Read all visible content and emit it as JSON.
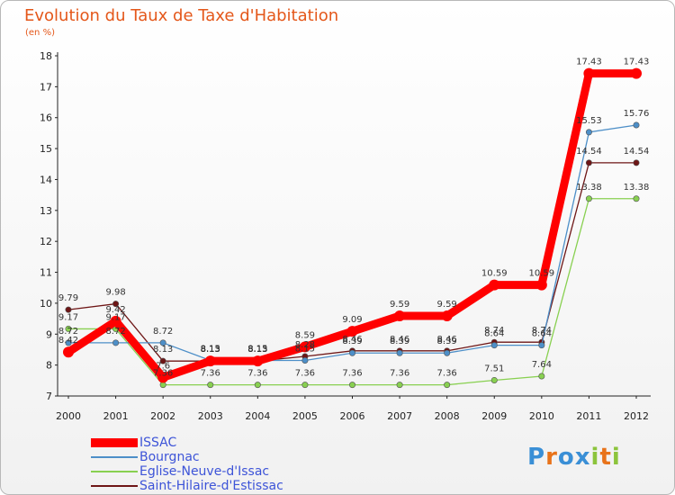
{
  "header": {
    "title": "Evolution du Taux de Taxe d'Habitation",
    "subtitle": "(en %)"
  },
  "logo": {
    "text": "Proxiti",
    "letter_colors": [
      "#3a8fd6",
      "#e8731a",
      "#3a8fd6",
      "#3a8fd6",
      "#8cc43c",
      "#e8731a",
      "#8cc43c"
    ]
  },
  "chart_data": {
    "type": "line",
    "x": [
      "2000",
      "2001",
      "2002",
      "2003",
      "2004",
      "2005",
      "2006",
      "2007",
      "2008",
      "2009",
      "2010",
      "2011",
      "2012"
    ],
    "ylim": [
      7,
      18
    ],
    "yticks": [
      "7",
      "8",
      "9",
      "10",
      "11",
      "12",
      "13",
      "14",
      "15",
      "16",
      "17",
      "18"
    ],
    "grid": false,
    "legend_position": "bottom-left",
    "series": [
      {
        "name": "ISSAC",
        "color": "#ff0000",
        "values": [
          8.42,
          9.42,
          7.6,
          8.13,
          8.13,
          8.59,
          9.09,
          9.59,
          9.59,
          10.59,
          10.59,
          17.43,
          17.43
        ],
        "labels": [
          "8.42",
          "9.42",
          "7.6",
          "8.13",
          "8.13",
          "8.59",
          "9.09",
          "9.59",
          "9.59",
          "10.59",
          "10.59",
          "17.43",
          "17.43"
        ]
      },
      {
        "name": "Bourgnac",
        "color": "#4d8fc8",
        "values": [
          8.72,
          8.72,
          8.72,
          8.15,
          8.15,
          8.15,
          8.39,
          8.39,
          8.39,
          8.64,
          8.64,
          15.53,
          15.76
        ],
        "labels": [
          "8.72",
          "8.72",
          "8.72",
          "8.15",
          "8.15",
          "8.15",
          "8.39",
          "8.39",
          "8.39",
          "8.64",
          "8.64",
          "15.53",
          "15.76"
        ]
      },
      {
        "name": "Eglise-Neuve-d'Issac",
        "color": "#88d050",
        "values": [
          9.17,
          9.17,
          7.36,
          7.36,
          7.36,
          7.36,
          7.36,
          7.36,
          7.36,
          7.51,
          7.64,
          13.38,
          13.38
        ],
        "labels": [
          "9.17",
          "9.17",
          "7.36",
          "7.36",
          "7.36",
          "7.36",
          "7.36",
          "7.36",
          "7.36",
          "7.51",
          "7.64",
          "13.38",
          "13.38"
        ]
      },
      {
        "name": "Saint-Hilaire-d'Estissac",
        "color": "#6e1616",
        "values": [
          9.79,
          9.98,
          8.13,
          8.13,
          8.13,
          8.28,
          8.46,
          8.46,
          8.46,
          8.74,
          8.74,
          14.54,
          14.54
        ],
        "labels": [
          "9.79",
          "9.98",
          "8.13",
          "8.13",
          "8.13",
          "8.28",
          "8.46",
          "8.46",
          "8.46",
          "8.74",
          "8.74",
          "14.54",
          "14.54"
        ]
      }
    ]
  }
}
